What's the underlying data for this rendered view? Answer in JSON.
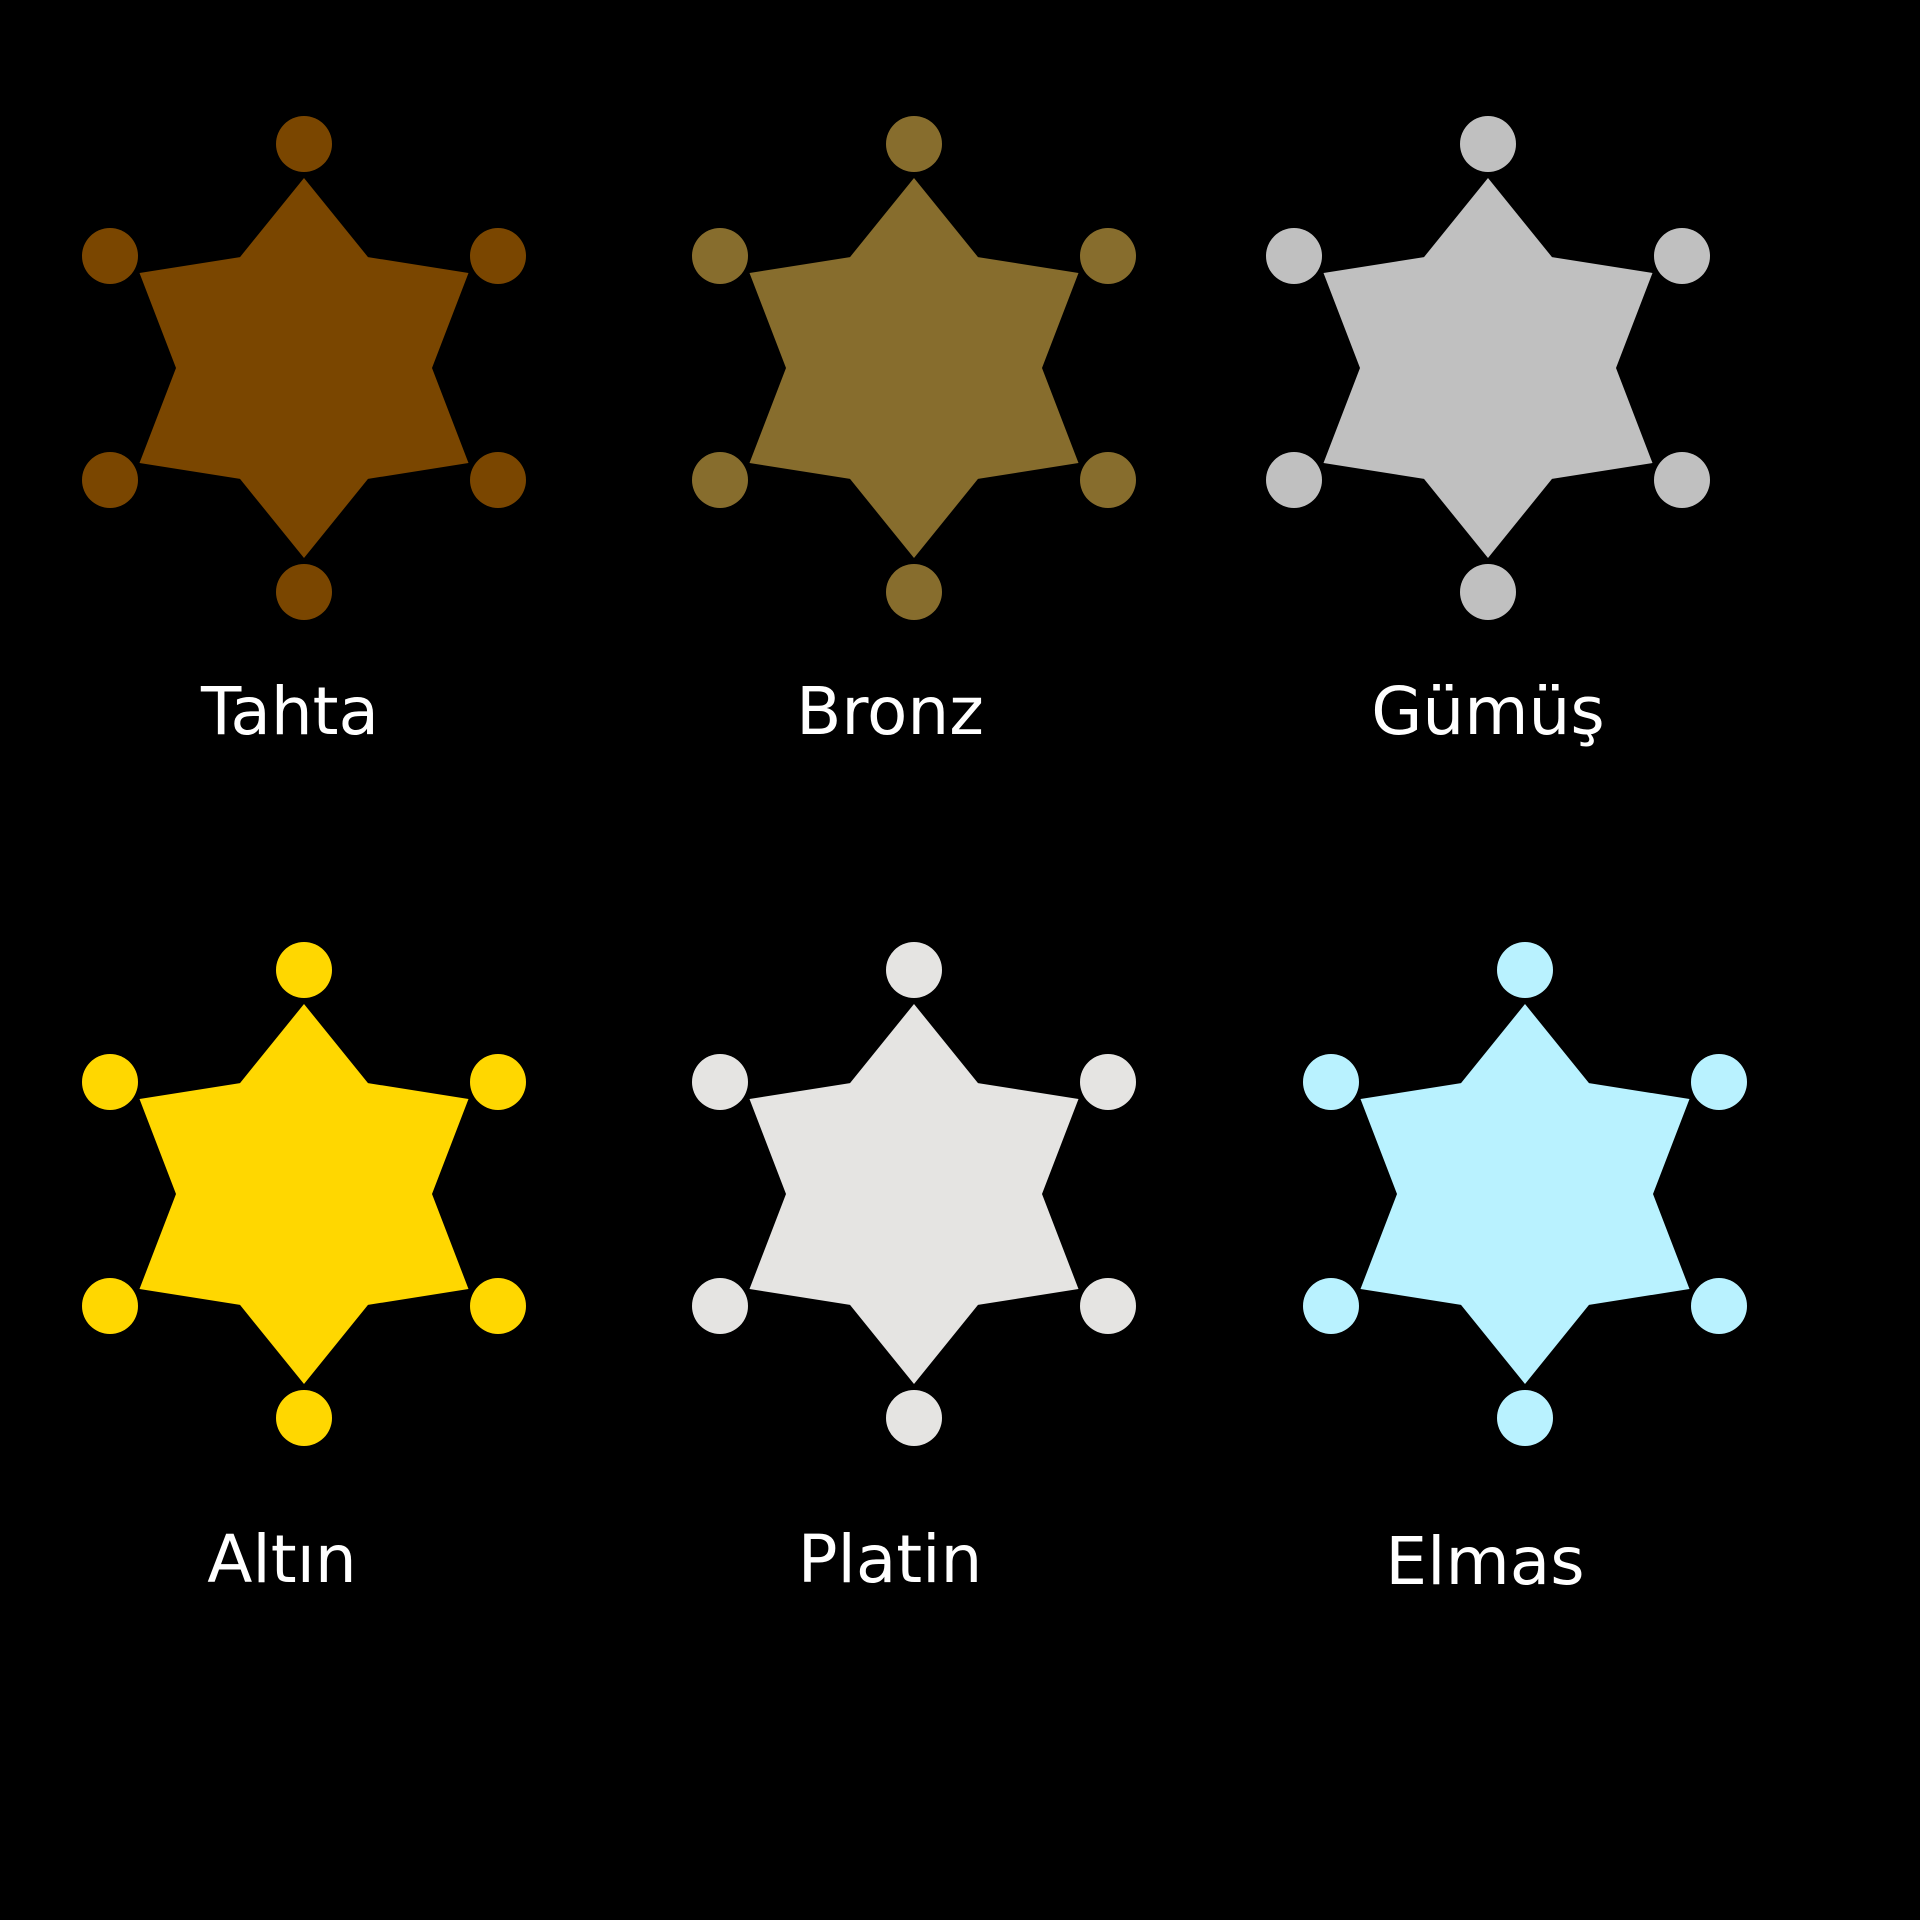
{
  "background_color": "#000000",
  "label_color": "#ffffff",
  "badges": [
    {
      "label": "Tahta",
      "color": "#7a4600",
      "icon": "sheriff-star-badge-icon"
    },
    {
      "label": "Bronz",
      "color": "#876d2d",
      "icon": "sheriff-star-badge-icon"
    },
    {
      "label": "Gümüş",
      "color": "#c0c0c0",
      "icon": "sheriff-star-badge-icon"
    },
    {
      "label": "Altın",
      "color": "#ffd700",
      "icon": "sheriff-star-badge-icon"
    },
    {
      "label": "Platin",
      "color": "#e5e4e2",
      "icon": "sheriff-star-badge-icon"
    },
    {
      "label": "Elmas",
      "color": "#b9f2ff",
      "icon": "sheriff-star-badge-icon"
    }
  ]
}
